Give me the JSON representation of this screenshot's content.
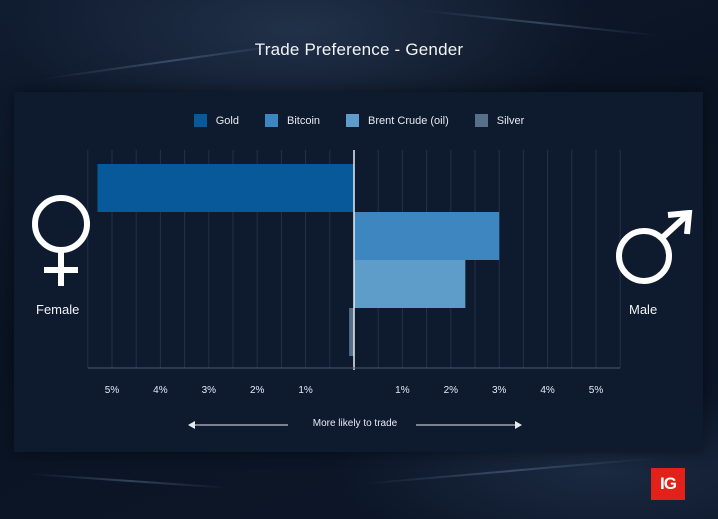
{
  "chart_data": {
    "type": "bar",
    "orientation": "horizontal",
    "title": "Trade Preference - Gender",
    "series": [
      {
        "name": "Gold",
        "color": "#07599a",
        "value": -5.3
      },
      {
        "name": "Bitcoin",
        "color": "#3d86c0",
        "value": 3.0
      },
      {
        "name": "Brent Crude (oil)",
        "color": "#5e9cc9",
        "value": 2.3
      },
      {
        "name": "Silver",
        "color": "#56708a",
        "value": -0.1
      }
    ],
    "xlim": [
      -5.5,
      5.5
    ],
    "ticks": [
      {
        "value": -5,
        "label": "5%"
      },
      {
        "value": -4,
        "label": "4%"
      },
      {
        "value": -3,
        "label": "3%"
      },
      {
        "value": -2,
        "label": "2%"
      },
      {
        "value": -1,
        "label": "1%"
      },
      {
        "value": 1,
        "label": "1%"
      },
      {
        "value": 2,
        "label": "2%"
      },
      {
        "value": 3,
        "label": "3%"
      },
      {
        "value": 4,
        "label": "4%"
      },
      {
        "value": 5,
        "label": "5%"
      }
    ],
    "grid": true,
    "legend_position": "top",
    "left_label": "Female",
    "right_label": "Male",
    "axis_caption": "More likely to trade"
  },
  "logo_text": "IG"
}
